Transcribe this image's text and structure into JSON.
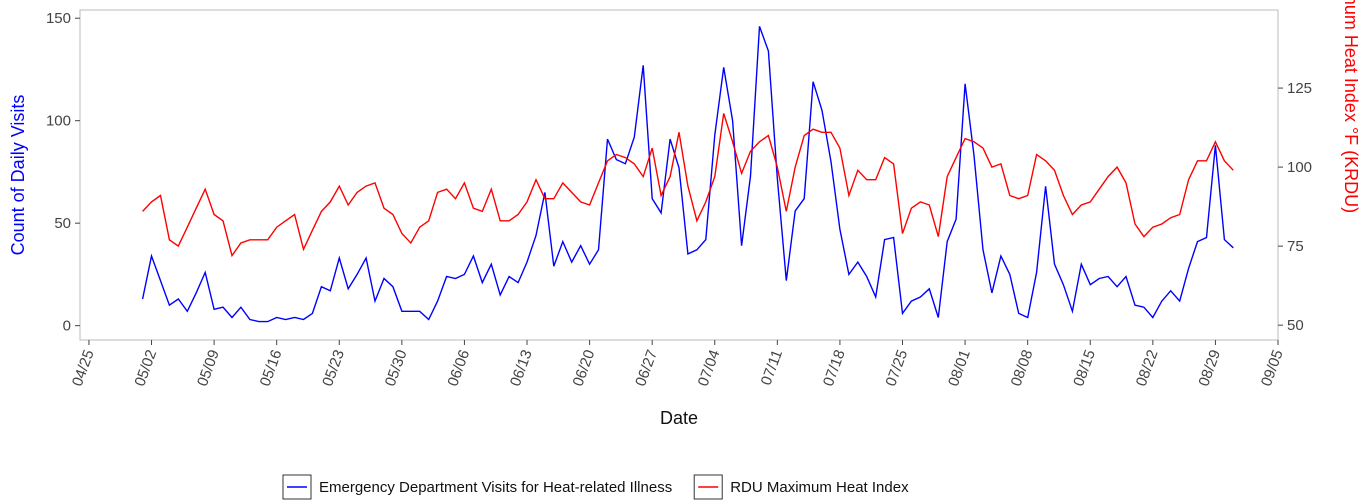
{
  "chart_data": {
    "type": "line",
    "xlabel": "Date",
    "ylabel": "Count of Daily Visits",
    "y2label": "Daily Maximum Heat Index °F (KRDU)",
    "x": [
      "05/01",
      "05/02",
      "05/03",
      "05/04",
      "05/05",
      "05/06",
      "05/07",
      "05/08",
      "05/09",
      "05/10",
      "05/11",
      "05/12",
      "05/13",
      "05/14",
      "05/15",
      "05/16",
      "05/17",
      "05/18",
      "05/19",
      "05/20",
      "05/21",
      "05/22",
      "05/23",
      "05/24",
      "05/25",
      "05/26",
      "05/27",
      "05/28",
      "05/29",
      "05/30",
      "05/31",
      "06/01",
      "06/02",
      "06/03",
      "06/04",
      "06/05",
      "06/06",
      "06/07",
      "06/08",
      "06/09",
      "06/10",
      "06/11",
      "06/12",
      "06/13",
      "06/14",
      "06/15",
      "06/16",
      "06/17",
      "06/18",
      "06/19",
      "06/20",
      "06/21",
      "06/22",
      "06/23",
      "06/24",
      "06/25",
      "06/26",
      "06/27",
      "06/28",
      "06/29",
      "06/30",
      "07/01",
      "07/02",
      "07/03",
      "07/04",
      "07/05",
      "07/06",
      "07/07",
      "07/08",
      "07/09",
      "07/10",
      "07/11",
      "07/12",
      "07/13",
      "07/14",
      "07/15",
      "07/16",
      "07/17",
      "07/18",
      "07/19",
      "07/20",
      "07/21",
      "07/22",
      "07/23",
      "07/24",
      "07/25",
      "07/26",
      "07/27",
      "07/28",
      "07/29",
      "07/30",
      "07/31",
      "08/01",
      "08/02",
      "08/03",
      "08/04",
      "08/05",
      "08/06",
      "08/07",
      "08/08",
      "08/09",
      "08/10",
      "08/11",
      "08/12",
      "08/13",
      "08/14",
      "08/15",
      "08/16",
      "08/17",
      "08/18",
      "08/19",
      "08/20",
      "08/21",
      "08/22",
      "08/23",
      "08/24",
      "08/25",
      "08/26",
      "08/27",
      "08/28",
      "08/29",
      "08/30",
      "08/31"
    ],
    "series": [
      {
        "name": "Emergency Department Visits for Heat-related Illness",
        "color": "#0000ff",
        "axis": "y",
        "values": [
          13,
          34,
          22,
          10,
          13,
          7,
          16,
          26,
          8,
          9,
          4,
          9,
          3,
          2,
          2,
          4,
          3,
          4,
          3,
          6,
          19,
          17,
          33,
          18,
          25,
          33,
          12,
          23,
          19,
          7,
          7,
          7,
          3,
          12,
          24,
          23,
          25,
          34,
          21,
          30,
          15,
          24,
          21,
          31,
          44,
          65,
          29,
          41,
          31,
          39,
          30,
          37,
          91,
          81,
          79,
          92,
          127,
          62,
          55,
          91,
          77,
          35,
          37,
          42,
          93,
          126,
          100,
          39,
          73,
          146,
          134,
          72,
          22,
          56,
          62,
          119,
          105,
          80,
          47,
          25,
          31,
          24,
          14,
          42,
          43,
          6,
          12,
          14,
          18,
          4,
          41,
          52,
          118,
          83,
          37,
          16,
          34,
          25,
          6,
          4,
          26,
          68,
          30,
          20,
          7,
          30,
          20,
          23,
          24,
          19,
          24,
          10,
          9,
          4,
          12,
          17,
          12,
          28,
          41,
          43,
          88,
          42,
          38
        ]
      },
      {
        "name": "RDU Maximum Heat Index",
        "color": "#ff0000",
        "axis": "y2",
        "values": [
          86,
          89,
          91,
          77,
          75,
          81,
          87,
          93,
          85,
          83,
          72,
          76,
          77,
          77,
          77,
          81,
          83,
          85,
          74,
          80,
          86,
          89,
          94,
          88,
          92,
          94,
          95,
          87,
          85,
          79,
          76,
          81,
          83,
          92,
          93,
          90,
          95,
          87,
          86,
          93,
          83,
          83,
          85,
          89,
          96,
          90,
          90,
          95,
          92,
          89,
          88,
          95,
          102,
          104,
          103,
          101,
          97,
          106,
          91,
          97,
          111,
          94,
          83,
          89,
          97,
          117,
          108,
          98,
          105,
          108,
          110,
          100,
          86,
          100,
          110,
          112,
          111,
          111,
          106,
          91,
          99,
          96,
          96,
          103,
          101,
          79,
          87,
          89,
          88,
          78,
          97,
          103,
          109,
          108,
          106,
          100,
          101,
          91,
          90,
          91,
          104,
          102,
          99,
          91,
          85,
          88,
          89,
          93,
          97,
          100,
          95,
          82,
          78,
          81,
          82,
          84,
          85,
          96,
          102,
          102,
          108,
          102,
          99
        ]
      }
    ],
    "xlim": [
      "04/24",
      "09/05"
    ],
    "xticks": [
      "04/25",
      "05/02",
      "05/09",
      "05/16",
      "05/23",
      "05/30",
      "06/06",
      "06/13",
      "06/20",
      "06/27",
      "07/04",
      "07/11",
      "07/18",
      "07/25",
      "08/01",
      "08/08",
      "08/15",
      "08/22",
      "08/29",
      "09/05"
    ],
    "ylim": [
      -7,
      154
    ],
    "yticks": [
      0,
      50,
      100,
      150
    ],
    "y2lim": [
      45.3,
      149.7
    ],
    "y2ticks": [
      50,
      75,
      100,
      125
    ],
    "legend": "bottom"
  }
}
